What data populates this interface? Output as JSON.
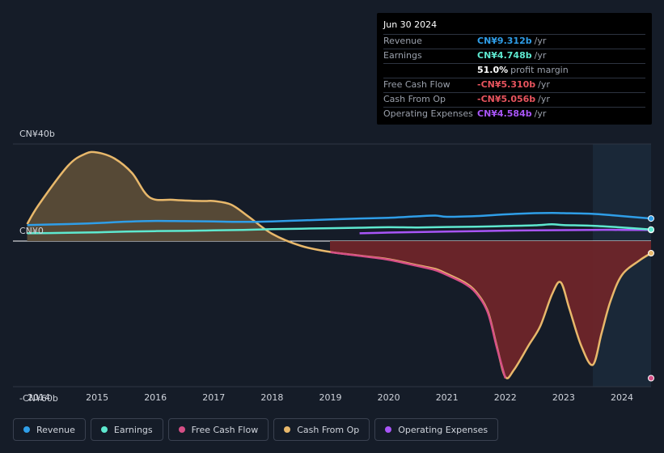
{
  "tooltip": {
    "date": "Jun 30 2024",
    "rows": [
      {
        "label": "Revenue",
        "value": "CN¥9.312b",
        "unit": "/yr",
        "color": "#2f9ee8"
      },
      {
        "label": "Earnings",
        "value": "CN¥4.748b",
        "unit": "/yr",
        "color": "#5ee8cf"
      },
      {
        "label": "",
        "value": "51.0%",
        "unit": "profit margin",
        "color": "#ffffff"
      },
      {
        "label": "Free Cash Flow",
        "value": "-CN¥5.310b",
        "unit": "/yr",
        "color": "#e8545e"
      },
      {
        "label": "Cash From Op",
        "value": "-CN¥5.056b",
        "unit": "/yr",
        "color": "#e8545e"
      },
      {
        "label": "Operating Expenses",
        "value": "CN¥4.584b",
        "unit": "/yr",
        "color": "#a855f7"
      }
    ]
  },
  "legend": [
    {
      "label": "Revenue",
      "color": "#2f9ee8"
    },
    {
      "label": "Earnings",
      "color": "#5ee8cf"
    },
    {
      "label": "Free Cash Flow",
      "color": "#d64f86"
    },
    {
      "label": "Cash From Op",
      "color": "#e8b86b"
    },
    {
      "label": "Operating Expenses",
      "color": "#a855f7"
    }
  ],
  "chart_data": {
    "type": "area",
    "title": "",
    "ylim": [
      -60,
      40
    ],
    "y_labels": [
      "CN¥40b",
      "CN¥0",
      "-CN¥60b"
    ],
    "y_label_values": [
      40,
      0,
      -60
    ],
    "xlim": [
      2013.8,
      2024.5
    ],
    "x_ticks": [
      "2014",
      "2015",
      "2016",
      "2017",
      "2018",
      "2019",
      "2020",
      "2021",
      "2022",
      "2023",
      "2024"
    ],
    "x_tick_values": [
      2014,
      2015,
      2016,
      2017,
      2018,
      2019,
      2020,
      2021,
      2022,
      2023,
      2024
    ],
    "forecast_start": 2023.5,
    "series": [
      {
        "name": "Cash From Op",
        "color": "#e8b86b",
        "fill_pos": "#5a4c37",
        "fill_neg": "#6e2529",
        "x": [
          2013.8,
          2014.0,
          2014.5,
          2014.8,
          2015.0,
          2015.3,
          2015.6,
          2015.9,
          2016.3,
          2016.8,
          2017.0,
          2017.3,
          2017.6,
          2018.0,
          2018.5,
          2019.0,
          2019.5,
          2020.0,
          2020.5,
          2020.8,
          2021.0,
          2021.3,
          2021.5,
          2021.7,
          2021.85,
          2022.0,
          2022.15,
          2022.4,
          2022.6,
          2022.8,
          2022.95,
          2023.1,
          2023.3,
          2023.5,
          2023.65,
          2023.8,
          2024.0,
          2024.3,
          2024.5
        ],
        "y": [
          7,
          15,
          31,
          36,
          36.5,
          34,
          28,
          18,
          17,
          16.5,
          16.5,
          15,
          10,
          3,
          -2,
          -4.5,
          -6,
          -7.5,
          -10,
          -11.5,
          -13.5,
          -17,
          -21,
          -29,
          -43,
          -56,
          -53,
          -43,
          -35,
          -22,
          -17,
          -28,
          -43,
          -51,
          -38,
          -25,
          -14,
          -8,
          -5
        ],
        "fill_from": 2013.8
      },
      {
        "name": "Free Cash Flow",
        "color": "#d64f86",
        "x": [
          2019.0,
          2019.5,
          2020.0,
          2020.5,
          2020.8,
          2021.0,
          2021.3,
          2021.5,
          2021.7,
          2021.85,
          2022.0
        ],
        "y": [
          -4.6,
          -6.1,
          -7.7,
          -10.3,
          -12,
          -14,
          -17.5,
          -21.5,
          -29.5,
          -43.5,
          -56.5
        ]
      },
      {
        "name": "Operating Expenses",
        "color": "#a855f7",
        "x": [
          2019.5,
          2020.0,
          2020.5,
          2021.0,
          2021.5,
          2022.0,
          2022.5,
          2023.0,
          2023.5,
          2024.0,
          2024.5
        ],
        "y": [
          3.2,
          3.5,
          3.7,
          3.9,
          4.1,
          4.3,
          4.4,
          4.5,
          4.6,
          4.6,
          4.58
        ]
      },
      {
        "name": "Earnings",
        "color": "#5ee8cf",
        "x": [
          2013.8,
          2014.5,
          2015.0,
          2015.5,
          2016.0,
          2016.5,
          2017.0,
          2017.5,
          2018.0,
          2018.5,
          2019.0,
          2019.5,
          2020.0,
          2020.5,
          2021.0,
          2021.5,
          2022.0,
          2022.5,
          2022.8,
          2023.0,
          2023.5,
          2024.0,
          2024.5
        ],
        "y": [
          3.2,
          3.4,
          3.6,
          3.9,
          4.1,
          4.2,
          4.4,
          4.6,
          4.9,
          5.1,
          5.3,
          5.5,
          5.7,
          5.6,
          5.8,
          5.9,
          6.2,
          6.5,
          6.9,
          6.6,
          6.3,
          5.6,
          4.75
        ]
      },
      {
        "name": "Revenue",
        "color": "#2f9ee8",
        "x": [
          2013.8,
          2014.5,
          2015.0,
          2015.5,
          2016.0,
          2016.5,
          2017.0,
          2017.5,
          2018.0,
          2018.5,
          2019.0,
          2019.5,
          2020.0,
          2020.5,
          2020.8,
          2021.0,
          2021.5,
          2022.0,
          2022.5,
          2022.8,
          2023.0,
          2023.5,
          2024.0,
          2024.5
        ],
        "y": [
          6.6,
          7,
          7.4,
          8,
          8.3,
          8.2,
          8.1,
          7.9,
          8.1,
          8.5,
          8.9,
          9.3,
          9.6,
          10.2,
          10.5,
          10,
          10.3,
          11,
          11.5,
          11.6,
          11.5,
          11.2,
          10.3,
          9.3
        ]
      }
    ]
  }
}
